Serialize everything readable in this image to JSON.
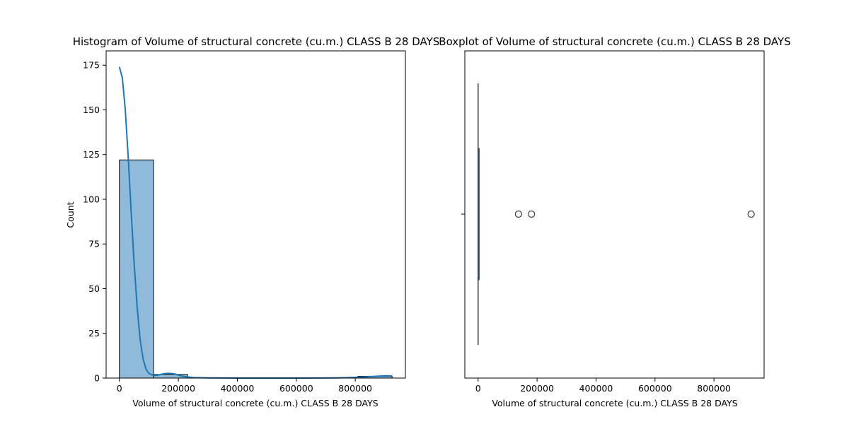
{
  "chart_data": [
    {
      "type": "bar",
      "title": "Histogram of Volume of structural concrete (cu.m.)  CLASS B 28 DAYS",
      "xlabel": "Volume of structural concrete (cu.m.)  CLASS B 28 DAYS",
      "ylabel": "Count",
      "xlim": [
        -45000,
        970000
      ],
      "ylim": [
        0,
        183
      ],
      "xticks": [
        0,
        200000,
        400000,
        600000,
        800000
      ],
      "xtick_labels": [
        "0",
        "200000",
        "400000",
        "600000",
        "800000"
      ],
      "yticks": [
        0,
        25,
        50,
        75,
        100,
        125,
        150,
        175
      ],
      "ytick_labels": [
        "0",
        "25",
        "50",
        "75",
        "100",
        "125",
        "150",
        "175"
      ],
      "bins": [
        {
          "x0": 0,
          "x1": 115600,
          "count": 122
        },
        {
          "x0": 115600,
          "x1": 231200,
          "count": 2
        },
        {
          "x0": 231200,
          "x1": 346800,
          "count": 0
        },
        {
          "x0": 346800,
          "x1": 462400,
          "count": 0
        },
        {
          "x0": 462400,
          "x1": 578000,
          "count": 0
        },
        {
          "x0": 578000,
          "x1": 693600,
          "count": 0
        },
        {
          "x0": 693600,
          "x1": 809200,
          "count": 0
        },
        {
          "x0": 809200,
          "x1": 924800,
          "count": 1
        }
      ],
      "kde": {
        "x": [
          0,
          10000,
          20000,
          30000,
          40000,
          50000,
          60000,
          70000,
          80000,
          90000,
          100000,
          110000,
          120000,
          130000,
          140000,
          150000,
          160000,
          170000,
          180000,
          190000,
          200000,
          220000,
          250000,
          300000,
          400000,
          500000,
          600000,
          700000,
          750000,
          800000,
          850000,
          880000,
          900000,
          924800
        ],
        "y": [
          174,
          168,
          150,
          123,
          93,
          64,
          40,
          22,
          11,
          5,
          2.6,
          1.8,
          1.5,
          1.6,
          2.0,
          2.4,
          2.6,
          2.6,
          2.5,
          2.2,
          1.6,
          0.9,
          0.3,
          0.1,
          0,
          0,
          0,
          0.05,
          0.15,
          0.4,
          0.8,
          1.1,
          1.3,
          1.2
        ]
      },
      "bar_color": "#8fbad9",
      "line_color": "#1f77b4"
    },
    {
      "type": "box",
      "title": "Boxplot of Volume of structural concrete (cu.m.)  CLASS B 28 DAYS",
      "xlabel": "Volume of structural concrete (cu.m.)  CLASS B 28 DAYS",
      "xlim": [
        -45000,
        970000
      ],
      "xticks": [
        0,
        200000,
        400000,
        600000,
        800000
      ],
      "xtick_labels": [
        "0",
        "200000",
        "400000",
        "600000",
        "800000"
      ],
      "box": {
        "whisker_low": 0,
        "q1": 200,
        "median": 600,
        "q3": 1500,
        "whisker_high": 3500
      },
      "outliers": [
        137000,
        181000,
        926000
      ],
      "box_color": "#1f77b4"
    }
  ]
}
